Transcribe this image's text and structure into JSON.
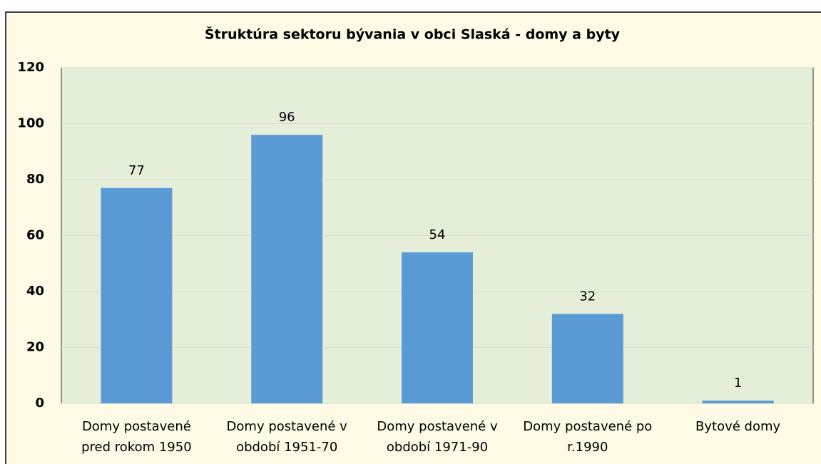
{
  "chart_data": {
    "type": "bar",
    "title": "Štruktúra sektoru bývania v obci Slaská - domy a byty",
    "categories": [
      "Domy postavené pred rokom 1950",
      "Domy postavené v období 1951-70",
      "Domy postavené v období 1971-90",
      "Domy postavené po r.1990",
      "Bytové domy"
    ],
    "values": [
      77,
      96,
      54,
      32,
      1
    ],
    "color": "#5b9bd5",
    "ylim": [
      0,
      120
    ],
    "yticks": [
      0,
      20,
      40,
      60,
      80,
      100,
      120
    ],
    "grid": true,
    "data_labels": true
  }
}
